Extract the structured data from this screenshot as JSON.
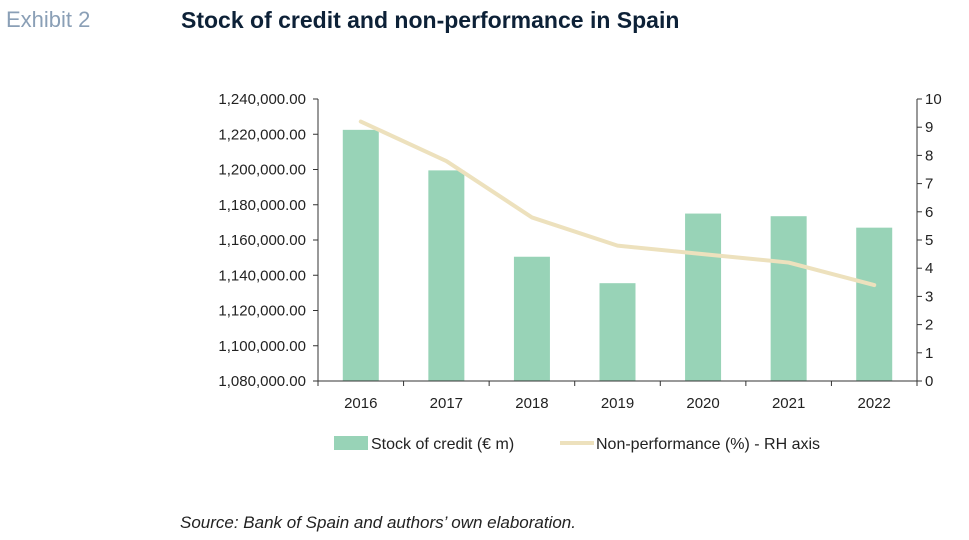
{
  "header": {
    "exhibit": "Exhibit 2",
    "title": "Stock of credit and non-performance in Spain"
  },
  "source": "Source: Bank of Spain and authors’ own elaboration.",
  "colors": {
    "bar": "#98d3b7",
    "line": "#ede1bd",
    "axis": "#333333",
    "title": "#0d2137",
    "exhibit": "#8a9fb6"
  },
  "chart_data": {
    "type": "bar",
    "title": "Stock of credit and non-performance in Spain",
    "categories": [
      "2016",
      "2017",
      "2018",
      "2019",
      "2020",
      "2021",
      "2022"
    ],
    "series": [
      {
        "name": "Stock of credit (€ m)",
        "type": "bar",
        "axis": "left",
        "values": [
          1222500,
          1199500,
          1150500,
          1135500,
          1175000,
          1173500,
          1167000
        ]
      },
      {
        "name": "Non-performance (%) - RH axis",
        "type": "line",
        "axis": "right",
        "values": [
          9.2,
          7.8,
          5.8,
          4.8,
          4.5,
          4.2,
          3.4
        ]
      }
    ],
    "y_left": {
      "lim": [
        1080000,
        1240000
      ],
      "ticks": [
        1080000,
        1100000,
        1120000,
        1140000,
        1160000,
        1180000,
        1200000,
        1220000,
        1240000
      ],
      "tick_labels": [
        "1,080,000.00",
        "1,100,000.00",
        "1,120,000.00",
        "1,140,000.00",
        "1,160,000.00",
        "1,180,000.00",
        "1,200,000.00",
        "1,220,000.00",
        "1,240,000.00"
      ]
    },
    "y_right": {
      "lim": [
        0,
        10
      ],
      "ticks": [
        0,
        1,
        2,
        3,
        4,
        5,
        6,
        7,
        8,
        9,
        10
      ],
      "tick_labels": [
        "0",
        "1",
        "2",
        "3",
        "4",
        "5",
        "6",
        "7",
        "8",
        "9",
        "10"
      ]
    },
    "grid": false,
    "legend": "bottom"
  }
}
